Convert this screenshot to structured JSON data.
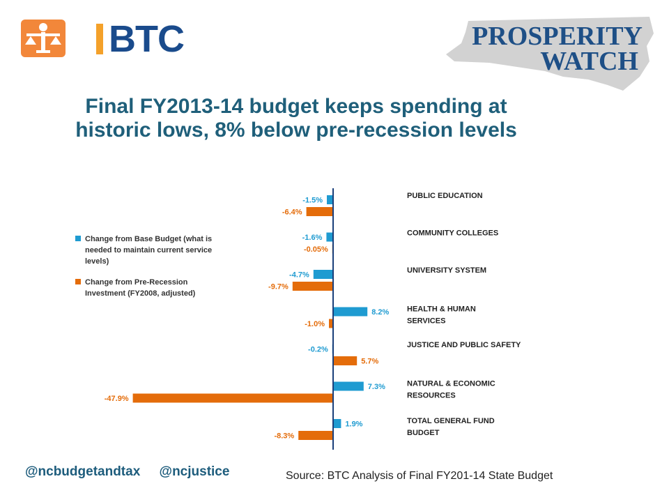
{
  "header": {
    "btc_logo_text": "BTC",
    "prosperity_line1": "PROSPERITY",
    "prosperity_line2": "WATCH"
  },
  "title_lines": [
    "Final FY2013-14 budget keeps spending at",
    "historic lows, 8% below pre-recession levels"
  ],
  "colors": {
    "blue": "#1f9bd1",
    "orange": "#e46c0a",
    "axis": "#1a3f7a",
    "title": "#1f5f7a"
  },
  "chart_data": {
    "type": "bar",
    "orientation": "horizontal",
    "categories": [
      [
        "PUBLIC EDUCATION"
      ],
      [
        "COMMUNITY COLLEGES"
      ],
      [
        "UNIVERSITY SYSTEM"
      ],
      [
        "HEALTH & HUMAN",
        "SERVICES"
      ],
      [
        "JUSTICE AND PUBLIC SAFETY"
      ],
      [
        "NATURAL & ECONOMIC",
        "RESOURCES"
      ],
      [
        "TOTAL GENERAL FUND",
        "BUDGET"
      ]
    ],
    "series": [
      {
        "name": "Change from Base Budget (what is needed to maintain current service levels)",
        "legend_lines": [
          "Change from Base Budget (what is",
          "needed to maintain current service",
          "levels)"
        ],
        "color": "#1f9bd1",
        "values": [
          -1.5,
          -1.6,
          -4.7,
          8.2,
          -0.2,
          7.3,
          1.9
        ],
        "labels": [
          "-1.5%",
          "-1.6%",
          "-4.7%",
          "8.2%",
          "-0.2%",
          "7.3%",
          "1.9%"
        ]
      },
      {
        "name": "Change from Pre-Recession Investment (FY2008, adjusted)",
        "legend_lines": [
          "Change from Pre-Recession",
          "Investment (FY2008, adjusted)"
        ],
        "color": "#e46c0a",
        "values": [
          -6.4,
          -0.05,
          -9.7,
          -1.0,
          5.7,
          -47.9,
          -8.3
        ],
        "labels": [
          "-6.4%",
          "-0.05%",
          "-9.7%",
          "-1.0%",
          "5.7%",
          "-47.9%",
          "-8.3%"
        ]
      }
    ],
    "legend_position": "left"
  },
  "footer": {
    "handle1": "@ncbudgetandtax",
    "handle2": "@ncjustice",
    "source": "Source: BTC Analysis of Final FY201-14 State Budget"
  }
}
